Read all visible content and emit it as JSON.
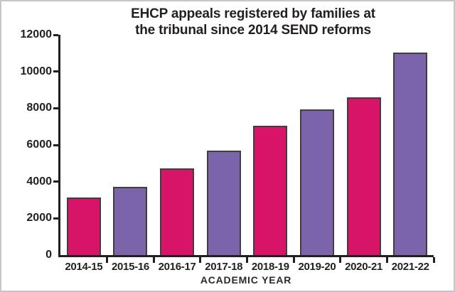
{
  "chart": {
    "title_line1": "EHCP appeals registered by families at",
    "title_line2": "the tribunal since 2014 SEND reforms",
    "xlabel": "ACADEMIC YEAR"
  },
  "chart_data": {
    "type": "bar",
    "title": "EHCP appeals registered by families at the tribunal since 2014 SEND reforms",
    "xlabel": "ACADEMIC YEAR",
    "ylabel": "",
    "categories": [
      "2014-15",
      "2015-16",
      "2016-17",
      "2017-18",
      "2018-19",
      "2019-20",
      "2020-21",
      "2021-22"
    ],
    "values": [
      3150,
      3710,
      4730,
      5680,
      7030,
      7920,
      8580,
      11050
    ],
    "ylim": [
      0,
      12000
    ],
    "yticks": [
      0,
      2000,
      4000,
      6000,
      8000,
      10000,
      12000
    ],
    "grid": false,
    "legend_position": "none",
    "bar_colors_alternating": [
      "#d81468",
      "#7b64a9"
    ],
    "bar_outline_color": "#3f3f3f",
    "axis_color": "#231f20",
    "text_color": "#231f20",
    "background_color": "#ffffff"
  }
}
